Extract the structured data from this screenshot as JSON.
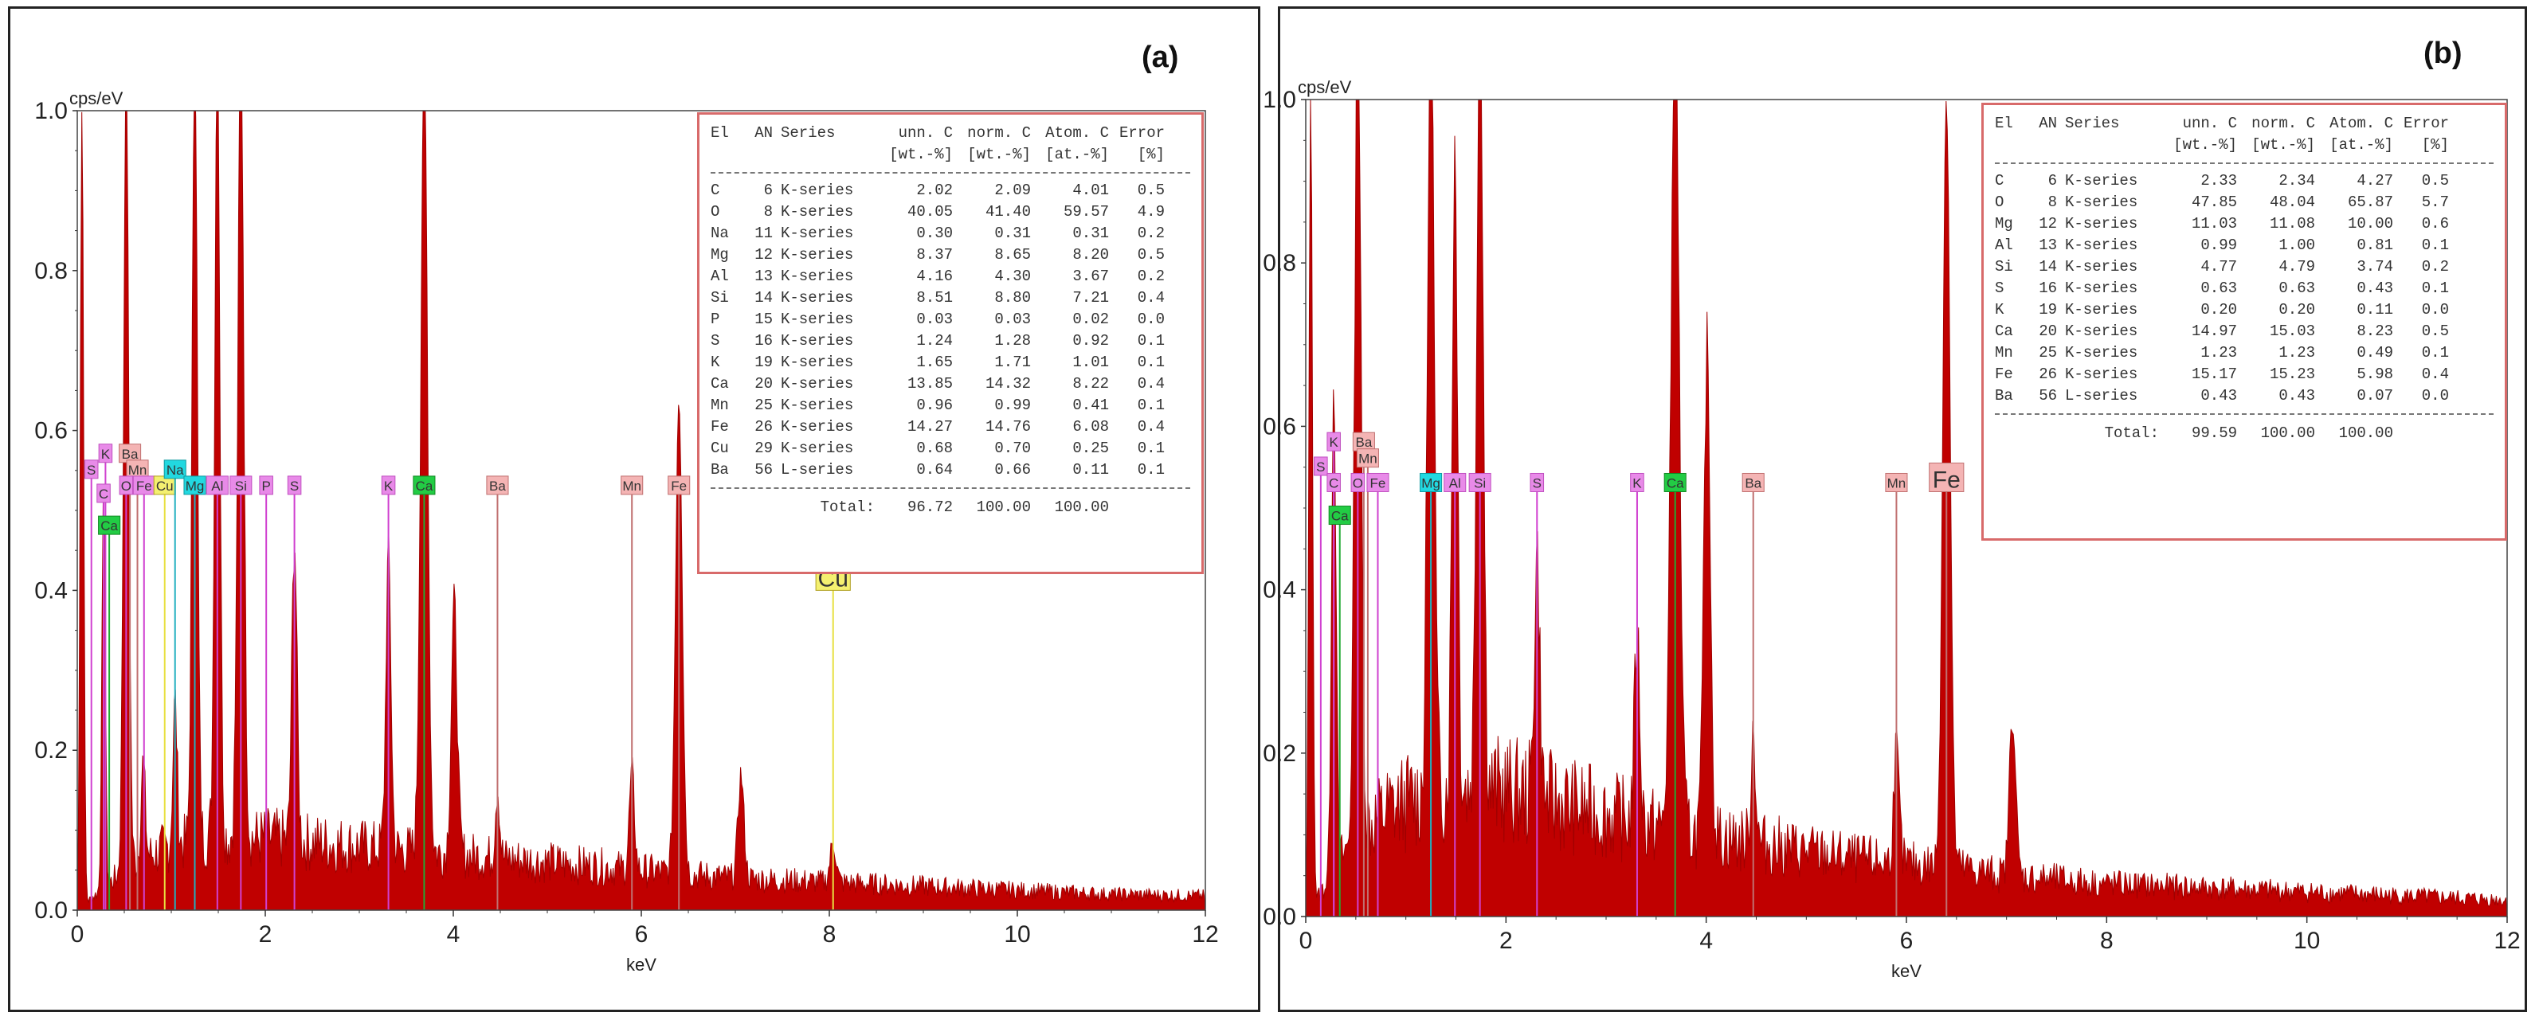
{
  "panels": [
    {
      "label": "(a)",
      "table": {
        "headers": {
          "el": "El",
          "an": "AN",
          "series": "Series",
          "unn": "unn. C",
          "norm": "norm. C",
          "atom": "Atom. C",
          "error": "Error",
          "unn_unit": "[wt.-%]",
          "norm_unit": "[wt.-%]",
          "atom_unit": "[at.-%]",
          "error_unit": "[%]"
        },
        "rows": [
          {
            "el": "C",
            "an": "6",
            "series": "K-series",
            "unn": "2.02",
            "norm": "2.09",
            "atom": "4.01",
            "error": "0.5"
          },
          {
            "el": "O",
            "an": "8",
            "series": "K-series",
            "unn": "40.05",
            "norm": "41.40",
            "atom": "59.57",
            "error": "4.9"
          },
          {
            "el": "Na",
            "an": "11",
            "series": "K-series",
            "unn": "0.30",
            "norm": "0.31",
            "atom": "0.31",
            "error": "0.2"
          },
          {
            "el": "Mg",
            "an": "12",
            "series": "K-series",
            "unn": "8.37",
            "norm": "8.65",
            "atom": "8.20",
            "error": "0.5"
          },
          {
            "el": "Al",
            "an": "13",
            "series": "K-series",
            "unn": "4.16",
            "norm": "4.30",
            "atom": "3.67",
            "error": "0.2"
          },
          {
            "el": "Si",
            "an": "14",
            "series": "K-series",
            "unn": "8.51",
            "norm": "8.80",
            "atom": "7.21",
            "error": "0.4"
          },
          {
            "el": "P",
            "an": "15",
            "series": "K-series",
            "unn": "0.03",
            "norm": "0.03",
            "atom": "0.02",
            "error": "0.0"
          },
          {
            "el": "S",
            "an": "16",
            "series": "K-series",
            "unn": "1.24",
            "norm": "1.28",
            "atom": "0.92",
            "error": "0.1"
          },
          {
            "el": "K",
            "an": "19",
            "series": "K-series",
            "unn": "1.65",
            "norm": "1.71",
            "atom": "1.01",
            "error": "0.1"
          },
          {
            "el": "Ca",
            "an": "20",
            "series": "K-series",
            "unn": "13.85",
            "norm": "14.32",
            "atom": "8.22",
            "error": "0.4"
          },
          {
            "el": "Mn",
            "an": "25",
            "series": "K-series",
            "unn": "0.96",
            "norm": "0.99",
            "atom": "0.41",
            "error": "0.1"
          },
          {
            "el": "Fe",
            "an": "26",
            "series": "K-series",
            "unn": "14.27",
            "norm": "14.76",
            "atom": "6.08",
            "error": "0.4"
          },
          {
            "el": "Cu",
            "an": "29",
            "series": "K-series",
            "unn": "0.68",
            "norm": "0.70",
            "atom": "0.25",
            "error": "0.1"
          },
          {
            "el": "Ba",
            "an": "56",
            "series": "L-series",
            "unn": "0.64",
            "norm": "0.66",
            "atom": "0.11",
            "error": "0.1"
          }
        ],
        "total": {
          "label": "Total:",
          "unn": "96.72",
          "norm": "100.00",
          "atom": "100.00"
        }
      }
    },
    {
      "label": "(b)",
      "table": {
        "headers": {
          "el": "El",
          "an": "AN",
          "series": "Series",
          "unn": "unn. C",
          "norm": "norm. C",
          "atom": "Atom. C",
          "error": "Error",
          "unn_unit": "[wt.-%]",
          "norm_unit": "[wt.-%]",
          "atom_unit": "[at.-%]",
          "error_unit": "[%]"
        },
        "rows": [
          {
            "el": "C",
            "an": "6",
            "series": "K-series",
            "unn": "2.33",
            "norm": "2.34",
            "atom": "4.27",
            "error": "0.5"
          },
          {
            "el": "O",
            "an": "8",
            "series": "K-series",
            "unn": "47.85",
            "norm": "48.04",
            "atom": "65.87",
            "error": "5.7"
          },
          {
            "el": "Mg",
            "an": "12",
            "series": "K-series",
            "unn": "11.03",
            "norm": "11.08",
            "atom": "10.00",
            "error": "0.6"
          },
          {
            "el": "Al",
            "an": "13",
            "series": "K-series",
            "unn": "0.99",
            "norm": "1.00",
            "atom": "0.81",
            "error": "0.1"
          },
          {
            "el": "Si",
            "an": "14",
            "series": "K-series",
            "unn": "4.77",
            "norm": "4.79",
            "atom": "3.74",
            "error": "0.2"
          },
          {
            "el": "S",
            "an": "16",
            "series": "K-series",
            "unn": "0.63",
            "norm": "0.63",
            "atom": "0.43",
            "error": "0.1"
          },
          {
            "el": "K",
            "an": "19",
            "series": "K-series",
            "unn": "0.20",
            "norm": "0.20",
            "atom": "0.11",
            "error": "0.0"
          },
          {
            "el": "Ca",
            "an": "20",
            "series": "K-series",
            "unn": "14.97",
            "norm": "15.03",
            "atom": "8.23",
            "error": "0.5"
          },
          {
            "el": "Mn",
            "an": "25",
            "series": "K-series",
            "unn": "1.23",
            "norm": "1.23",
            "atom": "0.49",
            "error": "0.1"
          },
          {
            "el": "Fe",
            "an": "26",
            "series": "K-series",
            "unn": "15.17",
            "norm": "15.23",
            "atom": "5.98",
            "error": "0.4"
          },
          {
            "el": "Ba",
            "an": "56",
            "series": "L-series",
            "unn": "0.43",
            "norm": "0.43",
            "atom": "0.07",
            "error": "0.0"
          }
        ],
        "total": {
          "label": "Total:",
          "unn": "99.59",
          "norm": "100.00",
          "atom": "100.00"
        }
      }
    }
  ],
  "colors": {
    "spectrum": "#c00000",
    "label_pink": "#e88ae8",
    "label_salmon": "#f4b4b4",
    "label_green": "#22cc44",
    "label_cyan": "#22d8e0",
    "label_yellow": "#f4f070",
    "table_border": "#d86a6a"
  },
  "chart_data": [
    {
      "type": "area",
      "panel": "(a)",
      "xlabel": "keV",
      "ylabel": "cps/eV",
      "xlim": [
        0,
        12
      ],
      "ylim": [
        0,
        1.0
      ],
      "x_ticks": [
        "0",
        "2",
        "4",
        "6",
        "8",
        "10",
        "12"
      ],
      "y_ticks": [
        "0.0",
        "0.2",
        "0.4",
        "0.6",
        "0.8",
        "1.0"
      ],
      "background": [
        [
          0,
          0.0
        ],
        [
          0.2,
          0.02
        ],
        [
          0.4,
          0.04
        ],
        [
          0.6,
          0.06
        ],
        [
          0.8,
          0.07
        ],
        [
          1.0,
          0.08
        ],
        [
          1.2,
          0.085
        ],
        [
          1.4,
          0.09
        ],
        [
          1.6,
          0.09
        ],
        [
          2.0,
          0.09
        ],
        [
          2.5,
          0.085
        ],
        [
          3.0,
          0.08
        ],
        [
          3.5,
          0.075
        ],
        [
          4.0,
          0.07
        ],
        [
          4.5,
          0.065
        ],
        [
          5.0,
          0.06
        ],
        [
          5.5,
          0.055
        ],
        [
          6.0,
          0.05
        ],
        [
          6.5,
          0.045
        ],
        [
          7.0,
          0.04
        ],
        [
          8.0,
          0.035
        ],
        [
          9.0,
          0.03
        ],
        [
          10.0,
          0.025
        ],
        [
          11.0,
          0.02
        ],
        [
          12.0,
          0.018
        ]
      ],
      "peaks": [
        {
          "x": 0.05,
          "y": 1.0,
          "w": 0.04
        },
        {
          "x": 0.28,
          "y": 0.5,
          "w": 0.04
        },
        {
          "x": 0.52,
          "y": 1.0,
          "w": 0.06
        },
        {
          "x": 0.7,
          "y": 0.12,
          "w": 0.05
        },
        {
          "x": 1.04,
          "y": 0.18,
          "w": 0.05
        },
        {
          "x": 1.25,
          "y": 1.0,
          "w": 0.06
        },
        {
          "x": 1.49,
          "y": 1.0,
          "w": 0.06
        },
        {
          "x": 1.74,
          "y": 1.0,
          "w": 0.07
        },
        {
          "x": 2.31,
          "y": 0.38,
          "w": 0.06
        },
        {
          "x": 3.31,
          "y": 0.37,
          "w": 0.06
        },
        {
          "x": 3.69,
          "y": 1.0,
          "w": 0.08
        },
        {
          "x": 4.01,
          "y": 0.31,
          "w": 0.07
        },
        {
          "x": 4.47,
          "y": 0.09,
          "w": 0.05
        },
        {
          "x": 5.9,
          "y": 0.12,
          "w": 0.06
        },
        {
          "x": 6.4,
          "y": 0.6,
          "w": 0.08
        },
        {
          "x": 7.06,
          "y": 0.13,
          "w": 0.07
        },
        {
          "x": 8.04,
          "y": 0.05,
          "w": 0.07
        }
      ],
      "markers": [
        {
          "text": "S",
          "x": 0.15,
          "y": 0.54,
          "style": "pink"
        },
        {
          "text": "K",
          "x": 0.3,
          "y": 0.56,
          "style": "pink"
        },
        {
          "text": "Ba",
          "x": 0.56,
          "y": 0.56,
          "style": "salmon"
        },
        {
          "text": "C",
          "x": 0.28,
          "y": 0.51,
          "style": "pink"
        },
        {
          "text": "Mn",
          "x": 0.64,
          "y": 0.54,
          "style": "salmon"
        },
        {
          "text": "O",
          "x": 0.52,
          "y": 0.52,
          "style": "pink"
        },
        {
          "text": "Fe",
          "x": 0.71,
          "y": 0.52,
          "style": "pink"
        },
        {
          "text": "Cu",
          "x": 0.93,
          "y": 0.52,
          "style": "yellow"
        },
        {
          "text": "Na",
          "x": 1.04,
          "y": 0.54,
          "style": "cyan"
        },
        {
          "text": "Mg",
          "x": 1.25,
          "y": 0.52,
          "style": "cyan"
        },
        {
          "text": "Al",
          "x": 1.49,
          "y": 0.52,
          "style": "pink"
        },
        {
          "text": "Si",
          "x": 1.74,
          "y": 0.52,
          "style": "pink"
        },
        {
          "text": "Ca",
          "x": 0.34,
          "y": 0.47,
          "style": "green"
        },
        {
          "text": "P",
          "x": 2.01,
          "y": 0.52,
          "style": "pink"
        },
        {
          "text": "S",
          "x": 2.31,
          "y": 0.52,
          "style": "pink"
        },
        {
          "text": "K",
          "x": 3.31,
          "y": 0.52,
          "style": "pink"
        },
        {
          "text": "Ca",
          "x": 3.69,
          "y": 0.52,
          "style": "green"
        },
        {
          "text": "Ba",
          "x": 4.47,
          "y": 0.52,
          "style": "salmon"
        },
        {
          "text": "Mn",
          "x": 5.9,
          "y": 0.52,
          "style": "salmon"
        },
        {
          "text": "Fe",
          "x": 6.4,
          "y": 0.52,
          "style": "salmon"
        },
        {
          "text": "Cu",
          "x": 8.04,
          "y": 0.4,
          "style": "yellow-big"
        }
      ]
    },
    {
      "type": "area",
      "panel": "(b)",
      "xlabel": "keV",
      "ylabel": "cps/eV",
      "xlim": [
        0,
        12
      ],
      "ylim": [
        0,
        1.0
      ],
      "x_ticks": [
        "0",
        "2",
        "4",
        "6",
        "8",
        "10",
        "12"
      ],
      "y_ticks": [
        "0.0",
        "0.2",
        "0.4",
        "0.6",
        "0.8",
        "1.0"
      ],
      "background": [
        [
          0,
          0.0
        ],
        [
          0.2,
          0.04
        ],
        [
          0.4,
          0.08
        ],
        [
          0.6,
          0.11
        ],
        [
          0.8,
          0.13
        ],
        [
          1.0,
          0.14
        ],
        [
          1.2,
          0.15
        ],
        [
          1.5,
          0.16
        ],
        [
          2.0,
          0.155
        ],
        [
          2.5,
          0.14
        ],
        [
          3.0,
          0.125
        ],
        [
          3.5,
          0.11
        ],
        [
          4.0,
          0.1
        ],
        [
          4.5,
          0.09
        ],
        [
          5.0,
          0.08
        ],
        [
          5.5,
          0.07
        ],
        [
          6.0,
          0.065
        ],
        [
          6.5,
          0.06
        ],
        [
          7.0,
          0.05
        ],
        [
          8.0,
          0.04
        ],
        [
          9.0,
          0.035
        ],
        [
          10.0,
          0.03
        ],
        [
          11.0,
          0.025
        ],
        [
          12.0,
          0.02
        ]
      ],
      "peaks": [
        {
          "x": 0.05,
          "y": 1.0,
          "w": 0.04
        },
        {
          "x": 0.28,
          "y": 0.6,
          "w": 0.05
        },
        {
          "x": 0.52,
          "y": 1.0,
          "w": 0.07
        },
        {
          "x": 1.25,
          "y": 1.0,
          "w": 0.07
        },
        {
          "x": 1.49,
          "y": 0.79,
          "w": 0.06
        },
        {
          "x": 1.74,
          "y": 1.0,
          "w": 0.07
        },
        {
          "x": 2.31,
          "y": 0.3,
          "w": 0.06
        },
        {
          "x": 3.31,
          "y": 0.23,
          "w": 0.06
        },
        {
          "x": 3.69,
          "y": 1.0,
          "w": 0.09
        },
        {
          "x": 4.01,
          "y": 0.6,
          "w": 0.07
        },
        {
          "x": 4.47,
          "y": 0.14,
          "w": 0.05
        },
        {
          "x": 5.9,
          "y": 0.14,
          "w": 0.06
        },
        {
          "x": 6.4,
          "y": 0.95,
          "w": 0.08
        },
        {
          "x": 7.06,
          "y": 0.2,
          "w": 0.07
        }
      ],
      "markers": [
        {
          "text": "K",
          "x": 0.28,
          "y": 0.57,
          "style": "pink"
        },
        {
          "text": "Ba",
          "x": 0.58,
          "y": 0.57,
          "style": "salmon"
        },
        {
          "text": "S",
          "x": 0.15,
          "y": 0.54,
          "style": "pink"
        },
        {
          "text": "Mn",
          "x": 0.62,
          "y": 0.55,
          "style": "salmon"
        },
        {
          "text": "C",
          "x": 0.28,
          "y": 0.52,
          "style": "pink"
        },
        {
          "text": "O",
          "x": 0.52,
          "y": 0.52,
          "style": "pink"
        },
        {
          "text": "Fe",
          "x": 0.72,
          "y": 0.52,
          "style": "pink"
        },
        {
          "text": "Ca",
          "x": 0.34,
          "y": 0.48,
          "style": "green"
        },
        {
          "text": "Mg",
          "x": 1.25,
          "y": 0.52,
          "style": "cyan"
        },
        {
          "text": "Al",
          "x": 1.49,
          "y": 0.52,
          "style": "pink"
        },
        {
          "text": "Si",
          "x": 1.74,
          "y": 0.52,
          "style": "pink"
        },
        {
          "text": "S",
          "x": 2.31,
          "y": 0.52,
          "style": "pink"
        },
        {
          "text": "K",
          "x": 3.31,
          "y": 0.52,
          "style": "pink"
        },
        {
          "text": "Ca",
          "x": 3.69,
          "y": 0.52,
          "style": "green"
        },
        {
          "text": "Ba",
          "x": 4.47,
          "y": 0.52,
          "style": "salmon"
        },
        {
          "text": "Mn",
          "x": 5.9,
          "y": 0.52,
          "style": "salmon"
        },
        {
          "text": "Fe",
          "x": 6.4,
          "y": 0.52,
          "style": "salmon-big"
        }
      ]
    }
  ]
}
